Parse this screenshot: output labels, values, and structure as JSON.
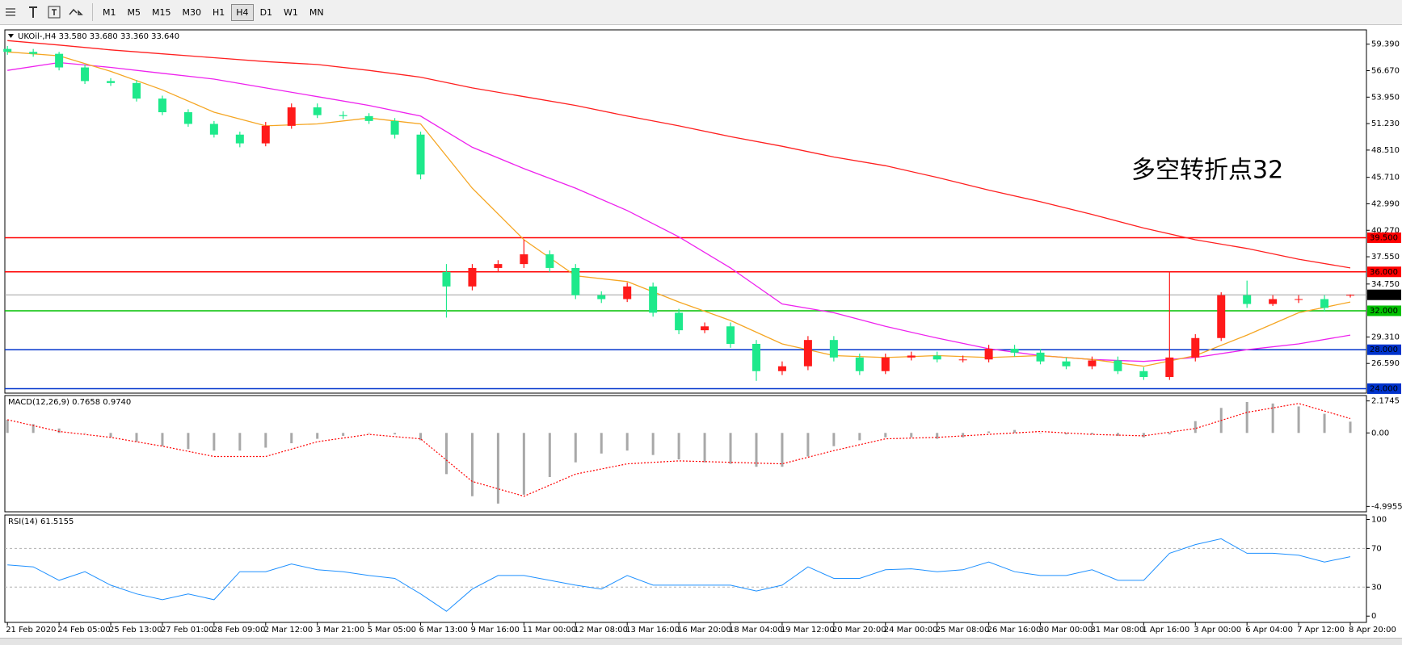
{
  "toolbar": {
    "timeframes": [
      "M1",
      "M5",
      "M15",
      "M30",
      "H1",
      "H4",
      "D1",
      "W1",
      "MN"
    ]
  },
  "chart_data": [
    {
      "type": "candlestick",
      "title": "UKOil-,H4 33.580 33.680 33.360 33.640",
      "annotation": "多空转折点32",
      "up_color": "#ff1a1a",
      "down_color": "#1de98b",
      "x": [
        0,
        4,
        8,
        12,
        16,
        20,
        24,
        28,
        32,
        36,
        40,
        44,
        48,
        52,
        56,
        60,
        64,
        68,
        72,
        76,
        80,
        84,
        88,
        92,
        96,
        100,
        104,
        108,
        112,
        116,
        120,
        124,
        128,
        132,
        136,
        140,
        144,
        148,
        152,
        156,
        160,
        164,
        168,
        172,
        176,
        180,
        184,
        188,
        192,
        196,
        200,
        204,
        208
      ],
      "open": [
        58.9,
        58.6,
        58.4,
        57.0,
        55.6,
        55.4,
        53.8,
        52.4,
        51.2,
        50.1,
        49.2,
        51.0,
        52.9,
        52.1,
        52.0,
        51.5,
        50.1,
        36.0,
        34.5,
        36.4,
        36.8,
        37.8,
        36.4,
        33.6,
        33.2,
        34.5,
        31.8,
        30.0,
        30.4,
        28.6,
        25.8,
        26.3,
        29.0,
        27.2,
        25.8,
        27.2,
        27.4,
        27.0,
        27.0,
        28.1,
        27.7,
        26.8,
        26.3,
        26.9,
        25.8,
        25.2,
        27.2,
        29.2,
        33.6,
        32.7,
        33.2,
        33.2,
        33.58
      ],
      "high": [
        59.2,
        58.9,
        58.6,
        57.3,
        55.9,
        55.7,
        54.1,
        52.7,
        51.5,
        50.4,
        51.4,
        53.3,
        53.3,
        52.5,
        52.3,
        51.8,
        50.4,
        36.8,
        36.8,
        37.2,
        39.3,
        38.2,
        36.8,
        34.0,
        34.9,
        34.9,
        32.2,
        30.8,
        30.8,
        29.0,
        26.8,
        29.4,
        29.4,
        27.6,
        27.6,
        27.8,
        27.8,
        27.4,
        28.5,
        28.5,
        28.1,
        27.2,
        27.3,
        27.3,
        26.2,
        36.0,
        29.6,
        33.9,
        35.1,
        33.6,
        33.6,
        33.6,
        33.68
      ],
      "low": [
        58.3,
        58.1,
        56.7,
        55.3,
        55.1,
        53.5,
        52.1,
        50.9,
        49.8,
        48.8,
        48.9,
        50.7,
        51.8,
        51.7,
        51.2,
        49.7,
        45.5,
        31.3,
        34.1,
        36.0,
        36.4,
        36.0,
        33.2,
        32.8,
        32.9,
        31.4,
        29.6,
        29.7,
        28.2,
        24.8,
        25.4,
        25.9,
        26.8,
        25.4,
        25.5,
        26.9,
        26.7,
        26.7,
        26.7,
        27.3,
        26.5,
        26.0,
        26.0,
        25.5,
        24.9,
        24.9,
        26.8,
        28.9,
        32.3,
        32.5,
        32.8,
        31.9,
        33.36
      ],
      "close": [
        58.6,
        58.4,
        57.0,
        55.6,
        55.4,
        53.8,
        52.4,
        51.2,
        50.1,
        49.2,
        51.0,
        52.9,
        52.1,
        52.0,
        51.5,
        50.1,
        46.0,
        34.5,
        36.4,
        36.8,
        37.8,
        36.4,
        33.6,
        33.2,
        34.5,
        31.8,
        30.0,
        30.4,
        28.6,
        25.8,
        26.3,
        29.0,
        27.2,
        25.8,
        27.2,
        27.4,
        27.0,
        27.0,
        28.1,
        27.7,
        26.8,
        26.3,
        26.9,
        25.8,
        25.2,
        27.2,
        29.2,
        33.6,
        32.7,
        33.2,
        33.2,
        32.3,
        33.64
      ],
      "series": [
        {
          "color": "#ff2020",
          "x": [
            0,
            8,
            16,
            24,
            32,
            40,
            48,
            56,
            64,
            72,
            80,
            88,
            96,
            104,
            112,
            120,
            128,
            136,
            144,
            152,
            160,
            168,
            176,
            184,
            192,
            200,
            208
          ],
          "values": [
            59.76,
            59.3,
            58.8,
            58.4,
            58.0,
            57.6,
            57.3,
            56.7,
            56.0,
            54.9,
            54.0,
            53.1,
            52.0,
            51.0,
            49.9,
            48.9,
            47.8,
            46.9,
            45.7,
            44.4,
            43.2,
            41.9,
            40.5,
            39.3,
            38.4,
            37.3,
            36.4
          ]
        },
        {
          "color": "#ee22ee",
          "x": [
            0,
            8,
            16,
            24,
            32,
            40,
            48,
            56,
            64,
            72,
            80,
            88,
            96,
            104,
            112,
            120,
            128,
            136,
            144,
            152,
            160,
            168,
            176,
            184,
            192,
            200,
            208
          ],
          "values": [
            56.7,
            57.5,
            57.0,
            56.4,
            55.8,
            54.9,
            54.0,
            53.1,
            52.0,
            48.8,
            46.6,
            44.6,
            42.3,
            39.6,
            36.4,
            32.7,
            31.8,
            30.4,
            29.2,
            28.1,
            27.4,
            27.0,
            26.8,
            27.2,
            28.0,
            28.6,
            29.5
          ]
        },
        {
          "color": "#f5a623",
          "x": [
            0,
            8,
            16,
            24,
            32,
            40,
            48,
            56,
            64,
            72,
            80,
            88,
            96,
            104,
            112,
            120,
            128,
            136,
            144,
            152,
            160,
            168,
            176,
            184,
            192,
            200,
            208
          ],
          "values": [
            58.6,
            58.2,
            56.6,
            54.7,
            52.4,
            51.0,
            51.2,
            51.8,
            51.2,
            44.6,
            39.3,
            35.6,
            35.0,
            32.9,
            31.0,
            28.6,
            27.4,
            27.2,
            27.4,
            27.2,
            27.4,
            27.0,
            26.3,
            27.4,
            29.5,
            31.8,
            32.9
          ]
        }
      ],
      "levels": [
        {
          "value": 39.5,
          "label": "39.500",
          "color": "#ff0000"
        },
        {
          "value": 36.0,
          "label": "36.000",
          "color": "#ff0000"
        },
        {
          "value": 33.64,
          "label": "33.640",
          "color": "#000000"
        },
        {
          "value": 32.0,
          "label": "32.000",
          "color": "#00c000"
        },
        {
          "value": 28.0,
          "label": "28.000",
          "color": "#0033cc"
        },
        {
          "value": 24.0,
          "label": "24.000",
          "color": "#0033cc"
        }
      ],
      "xlim": [
        -0.4,
        210.5
      ],
      "ylim": [
        23.54,
        60.86
      ],
      "yticks": [
        {
          "value": 59.39,
          "label": "59.390"
        },
        {
          "value": 56.67,
          "label": "56.670"
        },
        {
          "value": 53.95,
          "label": "53.950"
        },
        {
          "value": 51.23,
          "label": "51.230"
        },
        {
          "value": 48.51,
          "label": "48.510"
        },
        {
          "value": 45.71,
          "label": "45.710"
        },
        {
          "value": 42.99,
          "label": "42.990"
        },
        {
          "value": 40.27,
          "label": "40.270"
        },
        {
          "value": 37.55,
          "label": "37.550"
        },
        {
          "value": 34.75,
          "label": "34.750"
        },
        {
          "value": 29.31,
          "label": "29.310"
        },
        {
          "value": 26.59,
          "label": "26.590"
        }
      ],
      "xticks": [
        {
          "value": 0,
          "label": "21 Feb 2020"
        },
        {
          "value": 8,
          "label": "24 Feb 05:00"
        },
        {
          "value": 16,
          "label": "25 Feb 13:00"
        },
        {
          "value": 24,
          "label": "27 Feb 01:00"
        },
        {
          "value": 32,
          "label": "28 Feb 09:00"
        },
        {
          "value": 40,
          "label": "2 Mar 12:00"
        },
        {
          "value": 48,
          "label": "3 Mar 21:00"
        },
        {
          "value": 56,
          "label": "5 Mar 05:00"
        },
        {
          "value": 64,
          "label": "6 Mar 13:00"
        },
        {
          "value": 72,
          "label": "9 Mar 16:00"
        },
        {
          "value": 80,
          "label": "11 Mar 00:00"
        },
        {
          "value": 88,
          "label": "12 Mar 08:00"
        },
        {
          "value": 96,
          "label": "13 Mar 16:00"
        },
        {
          "value": 104,
          "label": "16 Mar 20:00"
        },
        {
          "value": 112,
          "label": "18 Mar 04:00"
        },
        {
          "value": 120,
          "label": "19 Mar 12:00"
        },
        {
          "value": 128,
          "label": "20 Mar 20:00"
        },
        {
          "value": 136,
          "label": "24 Mar 00:00"
        },
        {
          "value": 144,
          "label": "25 Mar 08:00"
        },
        {
          "value": 152,
          "label": "26 Mar 16:00"
        },
        {
          "value": 160,
          "label": "30 Mar 00:00"
        },
        {
          "value": 168,
          "label": "31 Mar 08:00"
        },
        {
          "value": 176,
          "label": "1 Apr 16:00"
        },
        {
          "value": 184,
          "label": "3 Apr 00:00"
        },
        {
          "value": 192,
          "label": "6 Apr 04:00"
        },
        {
          "value": 200,
          "label": "7 Apr 12:00"
        },
        {
          "value": 208,
          "label": "8 Apr 20:00"
        }
      ]
    },
    {
      "type": "macd",
      "title": "MACD(12,26,9) 0.7658 0.9740",
      "color": "#a8a8a8",
      "x": [
        0,
        4,
        8,
        12,
        16,
        20,
        24,
        28,
        32,
        36,
        40,
        44,
        48,
        52,
        56,
        60,
        64,
        68,
        72,
        76,
        80,
        84,
        88,
        92,
        96,
        100,
        104,
        108,
        112,
        116,
        120,
        124,
        128,
        132,
        136,
        140,
        144,
        148,
        152,
        156,
        160,
        164,
        168,
        172,
        176,
        180,
        184,
        188,
        192,
        196,
        200,
        204,
        208
      ],
      "values": [
        0.9,
        0.6,
        0.3,
        0.0,
        -0.3,
        -0.6,
        -0.9,
        -1.1,
        -1.2,
        -1.2,
        -1.0,
        -0.7,
        -0.4,
        -0.2,
        0.0,
        -0.1,
        -0.5,
        -2.8,
        -4.3,
        -4.8,
        -4.2,
        -3.0,
        -2.0,
        -1.4,
        -1.2,
        -1.5,
        -1.8,
        -2.0,
        -2.1,
        -2.3,
        -2.3,
        -1.6,
        -0.9,
        -0.5,
        -0.3,
        -0.3,
        -0.4,
        -0.3,
        0.1,
        0.2,
        0.0,
        -0.1,
        -0.1,
        -0.2,
        -0.3,
        -0.1,
        0.8,
        1.7,
        2.1,
        2.0,
        1.8,
        1.3,
        0.7658
      ],
      "signal": {
        "color": "#ff0000",
        "x": [
          0,
          8,
          16,
          24,
          32,
          40,
          48,
          56,
          64,
          72,
          80,
          88,
          96,
          104,
          112,
          120,
          128,
          136,
          144,
          152,
          160,
          168,
          176,
          184,
          192,
          200,
          208
        ],
        "values": [
          0.9,
          0.1,
          -0.3,
          -0.9,
          -1.6,
          -1.6,
          -0.6,
          -0.1,
          -0.4,
          -3.3,
          -4.3,
          -2.8,
          -2.1,
          -1.9,
          -2.0,
          -2.1,
          -1.2,
          -0.4,
          -0.3,
          -0.1,
          0.1,
          -0.1,
          -0.2,
          0.3,
          1.4,
          2.0,
          0.974
        ]
      },
      "xlim": [
        -0.4,
        210.5
      ],
      "ylim": [
        -5.36,
        2.539
      ],
      "yticks": [
        2.1745,
        {
          "value": 0,
          "label": "0.00"
        },
        -4.9955
      ]
    },
    {
      "type": "rsi",
      "title": "RSI(14) 61.5155",
      "color": "#1e90ff",
      "x": [
        0,
        4,
        8,
        12,
        16,
        20,
        24,
        28,
        32,
        36,
        40,
        44,
        48,
        52,
        56,
        60,
        64,
        68,
        72,
        76,
        80,
        84,
        88,
        92,
        96,
        100,
        104,
        108,
        112,
        116,
        120,
        124,
        128,
        132,
        136,
        140,
        144,
        148,
        152,
        156,
        160,
        164,
        168,
        172,
        176,
        180,
        184,
        188,
        192,
        196,
        200,
        204,
        208
      ],
      "values": [
        53,
        51,
        37,
        46,
        32,
        23,
        17,
        23,
        17,
        46,
        46,
        54,
        48,
        46,
        42,
        39,
        23,
        5,
        28,
        42,
        42,
        37,
        32,
        28,
        42,
        32,
        32,
        32,
        32,
        26,
        32,
        51,
        39,
        39,
        48,
        49,
        46,
        48,
        56,
        46,
        42,
        42,
        48,
        37,
        37,
        65,
        74,
        80,
        65,
        65,
        63,
        56,
        61.5155
      ],
      "levels": [
        70,
        30
      ],
      "xlim": [
        -0.4,
        210.5
      ],
      "ylim": [
        -6.5,
        104.6
      ],
      "yticks": [
        100,
        70,
        30,
        0
      ]
    }
  ]
}
